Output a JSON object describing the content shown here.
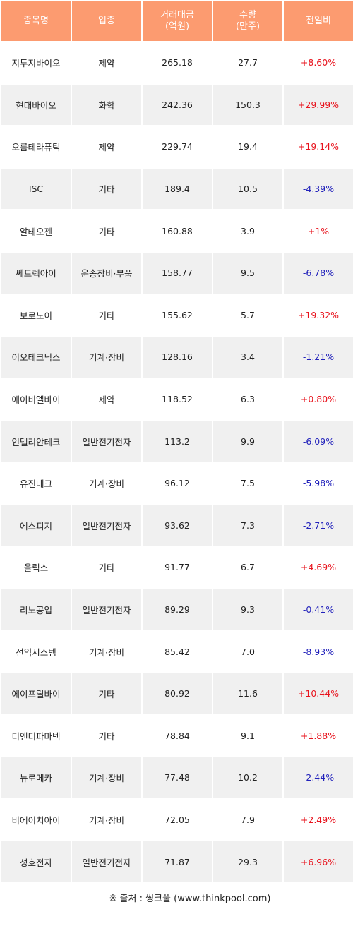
{
  "header": {
    "name": "종목명",
    "sector": "업종",
    "amount": "거래대금\n(억원)",
    "amount_line1": "거래대금",
    "amount_line2": "(억원)",
    "volume_line1": "수량",
    "volume_line2": "(만주)",
    "change": "전일비"
  },
  "rows": [
    {
      "name": "지투지바이오",
      "sector": "제약",
      "amount": "265.18",
      "volume": "27.7",
      "change": "+8.60%"
    },
    {
      "name": "현대바이오",
      "sector": "화학",
      "amount": "242.36",
      "volume": "150.3",
      "change": "+29.99%"
    },
    {
      "name": "오름테라퓨틱",
      "sector": "제약",
      "amount": "229.74",
      "volume": "19.4",
      "change": "+19.14%"
    },
    {
      "name": "ISC",
      "sector": "기타",
      "amount": "189.4",
      "volume": "10.5",
      "change": "-4.39%"
    },
    {
      "name": "알테오젠",
      "sector": "기타",
      "amount": "160.88",
      "volume": "3.9",
      "change": "+1%"
    },
    {
      "name": "쎄트렉아이",
      "sector": "운송장비·부품",
      "amount": "158.77",
      "volume": "9.5",
      "change": "-6.78%"
    },
    {
      "name": "보로노이",
      "sector": "기타",
      "amount": "155.62",
      "volume": "5.7",
      "change": "+19.32%"
    },
    {
      "name": "이오테크닉스",
      "sector": "기계·장비",
      "amount": "128.16",
      "volume": "3.4",
      "change": "-1.21%"
    },
    {
      "name": "에이비엘바이",
      "sector": "제약",
      "amount": "118.52",
      "volume": "6.3",
      "change": "+0.80%"
    },
    {
      "name": "인텔리안테크",
      "sector": "일반전기전자",
      "amount": "113.2",
      "volume": "9.9",
      "change": "-6.09%"
    },
    {
      "name": "유진테크",
      "sector": "기계·장비",
      "amount": "96.12",
      "volume": "7.5",
      "change": "-5.98%"
    },
    {
      "name": "에스피지",
      "sector": "일반전기전자",
      "amount": "93.62",
      "volume": "7.3",
      "change": "-2.71%"
    },
    {
      "name": "올릭스",
      "sector": "기타",
      "amount": "91.77",
      "volume": "6.7",
      "change": "+4.69%"
    },
    {
      "name": "리노공업",
      "sector": "일반전기전자",
      "amount": "89.29",
      "volume": "9.3",
      "change": "-0.41%"
    },
    {
      "name": "선익시스템",
      "sector": "기계·장비",
      "amount": "85.42",
      "volume": "7.0",
      "change": "-8.93%"
    },
    {
      "name": "에이프릴바이",
      "sector": "기타",
      "amount": "80.92",
      "volume": "11.6",
      "change": "+10.44%"
    },
    {
      "name": "디앤디파마텍",
      "sector": "기타",
      "amount": "78.84",
      "volume": "9.1",
      "change": "+1.88%"
    },
    {
      "name": "뉴로메카",
      "sector": "기계·장비",
      "amount": "77.48",
      "volume": "10.2",
      "change": "-2.44%"
    },
    {
      "name": "비에이치아이",
      "sector": "기계·장비",
      "amount": "72.05",
      "volume": "7.9",
      "change": "+2.49%"
    },
    {
      "name": "성호전자",
      "sector": "일반전기전자",
      "amount": "71.87",
      "volume": "29.3",
      "change": "+6.96%"
    }
  ],
  "colors": {
    "header_bg": "#fc9b70",
    "positive": "#e8141e",
    "negative": "#2222bb",
    "stripe": "#f0f0f0"
  },
  "source": "※ 출처 : 씽크풀 (www.thinkpool.com)"
}
